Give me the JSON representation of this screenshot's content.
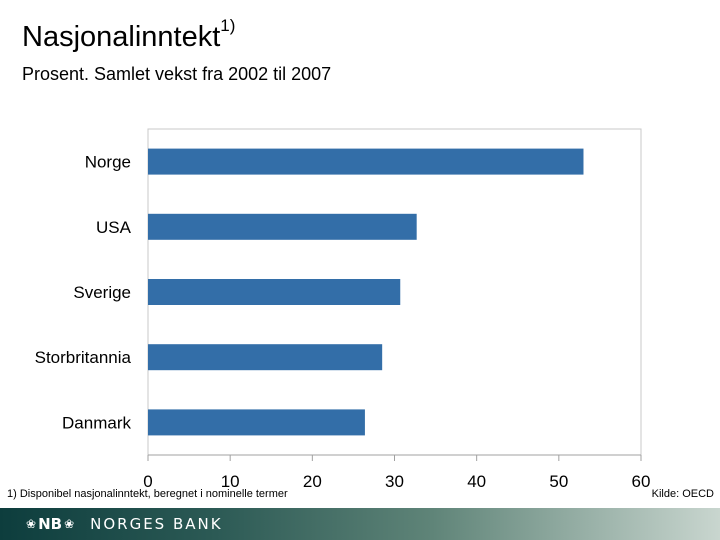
{
  "slide": {
    "title": "Nasjonalinntekt",
    "title_sup": "1)",
    "subtitle": "Prosent. Samlet vekst fra 2002 til 2007",
    "footnote": "1)  Disponibel nasjonalinntekt, beregnet i nominelle termer",
    "source": "Kilde: OECD"
  },
  "footer": {
    "logo_mark": "NB",
    "bank_name": "NORGES BANK",
    "ornament_left": "❀",
    "ornament_right": "❀",
    "bg_color": "#2c5a55"
  },
  "chart_data": {
    "type": "bar",
    "orientation": "horizontal",
    "categories": [
      "Norge",
      "USA",
      "Sverige",
      "Storbritannia",
      "Danmark"
    ],
    "values": [
      53,
      32.7,
      30.7,
      28.5,
      26.4
    ],
    "xlim": [
      0,
      60
    ],
    "xticks": [
      0,
      10,
      20,
      30,
      40,
      50,
      60
    ],
    "bar_color": "#336ea8",
    "grid": false
  }
}
